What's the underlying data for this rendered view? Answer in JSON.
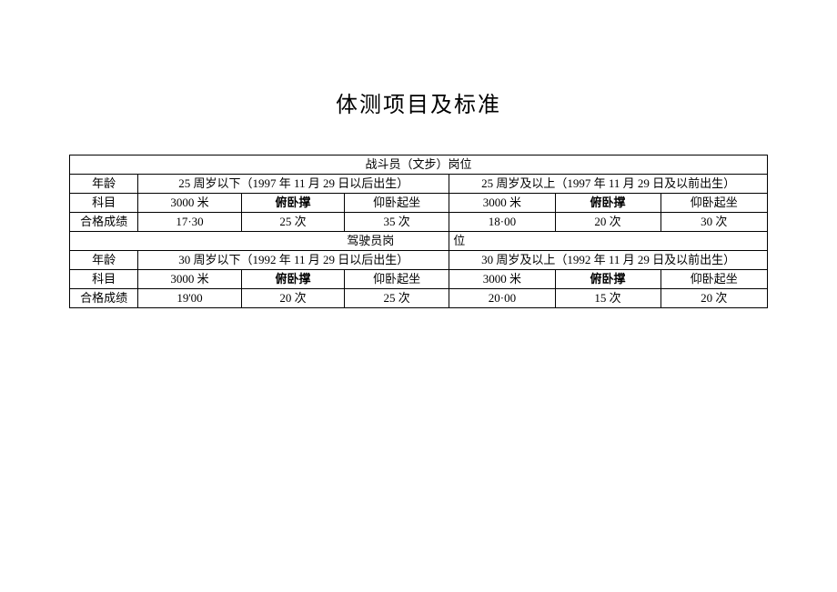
{
  "title": "体测项目及标准",
  "sections": [
    {
      "header": "战斗员（文步）岗位",
      "age_label": "年龄",
      "age_groups": [
        "25 周岁以下（1997 年 11 月 29 日以后出生）",
        "25 周岁及以上（1997 年 11 月 29 日及以前出生）"
      ],
      "subject_label": "科目",
      "subjects": [
        "3000 米",
        "俯卧撑",
        "仰卧起坐",
        "3000 米",
        "俯卧撑",
        "仰卧起坐"
      ],
      "pass_label": "合格成绩",
      "pass_values": [
        "17·30",
        "25 次",
        "35 次",
        "18·00",
        "20 次",
        "30 次"
      ]
    },
    {
      "header_left": "驾驶员岗",
      "header_right": "位",
      "age_label": "年龄",
      "age_groups": [
        "30 周岁以下（1992 年 11 月 29 日以后出生）",
        "30 周岁及以上（1992 年 11 月 29 日及以前出生）"
      ],
      "subject_label": "科目",
      "subjects": [
        "3000 米",
        "俯卧撑",
        "仰卧起坐",
        "3000 米",
        "俯卧撑",
        "仰卧起坐"
      ],
      "pass_label": "合格成绩",
      "pass_values": [
        "19'00",
        "20 次",
        "25 次",
        "20·00",
        "15 次",
        "20 次"
      ]
    }
  ]
}
